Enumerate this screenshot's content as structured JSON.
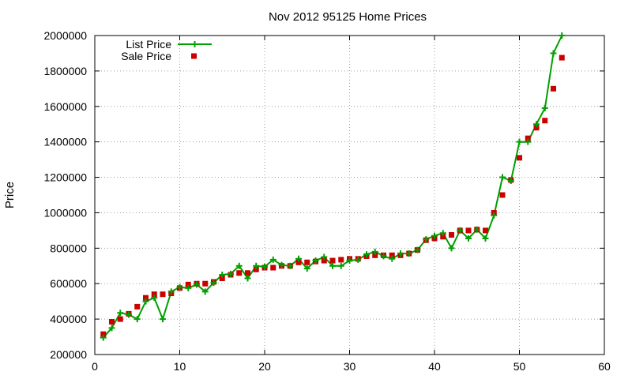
{
  "chart_data": {
    "type": "line",
    "title": "Nov 2012 95125 Home Prices",
    "xlabel": "",
    "ylabel": "Price",
    "xlim": [
      0,
      60
    ],
    "ylim": [
      200000,
      2000000
    ],
    "xticks": [
      0,
      10,
      20,
      30,
      40,
      50,
      60
    ],
    "yticks": [
      200000,
      400000,
      600000,
      800000,
      1000000,
      1200000,
      1400000,
      1600000,
      1800000,
      2000000
    ],
    "xtick_labels": [
      "0",
      "10",
      "20",
      "30",
      "40",
      "50",
      "60"
    ],
    "ytick_labels": [
      "200000",
      "400000",
      "600000",
      "800000",
      "1000000",
      "1200000",
      "1400000",
      "1600000",
      "1800000",
      "2000000"
    ],
    "grid": true,
    "legend_position": "top-left",
    "x": [
      1,
      2,
      3,
      4,
      5,
      6,
      7,
      8,
      9,
      10,
      11,
      12,
      13,
      14,
      15,
      16,
      17,
      18,
      19,
      20,
      21,
      22,
      23,
      24,
      25,
      26,
      27,
      28,
      29,
      30,
      31,
      32,
      33,
      34,
      35,
      36,
      37,
      38,
      39,
      40,
      41,
      42,
      43,
      44,
      45,
      46,
      47,
      48,
      49,
      50,
      51,
      52,
      53,
      54,
      55
    ],
    "series": [
      {
        "name": "List Price",
        "style": "linespoints",
        "color": "#00a000",
        "marker": "plus",
        "values": [
          295000,
          350000,
          435000,
          425000,
          400000,
          500000,
          520000,
          400000,
          555000,
          580000,
          575000,
          595000,
          555000,
          605000,
          650000,
          655000,
          700000,
          630000,
          700000,
          695000,
          735000,
          705000,
          700000,
          740000,
          685000,
          730000,
          750000,
          700000,
          700000,
          730000,
          735000,
          765000,
          780000,
          755000,
          740000,
          770000,
          770000,
          790000,
          850000,
          870000,
          885000,
          800000,
          900000,
          855000,
          905000,
          855000,
          985000,
          1200000,
          1180000,
          1400000,
          1400000,
          1500000,
          1590000,
          1900000,
          2000000
        ]
      },
      {
        "name": "Sale Price",
        "style": "points",
        "color": "#cc0000",
        "marker": "square",
        "values": [
          315000,
          385000,
          400000,
          430000,
          470000,
          520000,
          540000,
          540000,
          545000,
          575000,
          595000,
          600000,
          600000,
          610000,
          630000,
          650000,
          660000,
          660000,
          680000,
          690000,
          690000,
          700000,
          700000,
          720000,
          720000,
          725000,
          730000,
          730000,
          735000,
          740000,
          740000,
          755000,
          760000,
          760000,
          760000,
          760000,
          770000,
          790000,
          845000,
          855000,
          865000,
          875000,
          900000,
          900000,
          905000,
          900000,
          1000000,
          1100000,
          1185000,
          1310000,
          1420000,
          1480000,
          1520000,
          1700000,
          1875000
        ]
      }
    ]
  }
}
